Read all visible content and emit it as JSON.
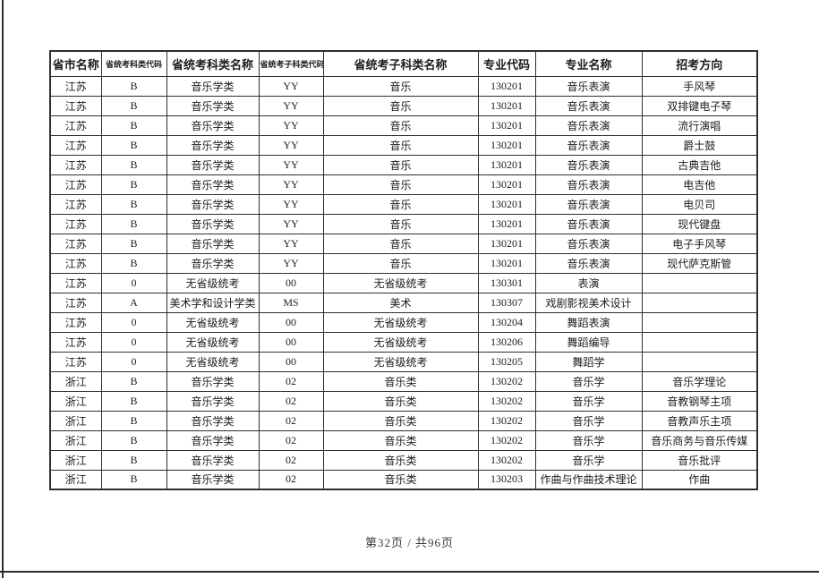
{
  "page": {
    "footer": "第32页 / 共96页"
  },
  "table": {
    "headers": [
      "省市名称",
      "省统考科类代码",
      "省统考科类名称",
      "省统考子科类代码",
      "省统考子科类名称",
      "专业代码",
      "专业名称",
      "招考方向"
    ],
    "rows": [
      [
        "江苏",
        "B",
        "音乐学类",
        "YY",
        "音乐",
        "130201",
        "音乐表演",
        "手风琴"
      ],
      [
        "江苏",
        "B",
        "音乐学类",
        "YY",
        "音乐",
        "130201",
        "音乐表演",
        "双排键电子琴"
      ],
      [
        "江苏",
        "B",
        "音乐学类",
        "YY",
        "音乐",
        "130201",
        "音乐表演",
        "流行演唱"
      ],
      [
        "江苏",
        "B",
        "音乐学类",
        "YY",
        "音乐",
        "130201",
        "音乐表演",
        "爵士鼓"
      ],
      [
        "江苏",
        "B",
        "音乐学类",
        "YY",
        "音乐",
        "130201",
        "音乐表演",
        "古典吉他"
      ],
      [
        "江苏",
        "B",
        "音乐学类",
        "YY",
        "音乐",
        "130201",
        "音乐表演",
        "电吉他"
      ],
      [
        "江苏",
        "B",
        "音乐学类",
        "YY",
        "音乐",
        "130201",
        "音乐表演",
        "电贝司"
      ],
      [
        "江苏",
        "B",
        "音乐学类",
        "YY",
        "音乐",
        "130201",
        "音乐表演",
        "现代键盘"
      ],
      [
        "江苏",
        "B",
        "音乐学类",
        "YY",
        "音乐",
        "130201",
        "音乐表演",
        "电子手风琴"
      ],
      [
        "江苏",
        "B",
        "音乐学类",
        "YY",
        "音乐",
        "130201",
        "音乐表演",
        "现代萨克斯管"
      ],
      [
        "江苏",
        "0",
        "无省级统考",
        "00",
        "无省级统考",
        "130301",
        "表演",
        ""
      ],
      [
        "江苏",
        "A",
        "美术学和设计学类",
        "MS",
        "美术",
        "130307",
        "戏剧影视美术设计",
        ""
      ],
      [
        "江苏",
        "0",
        "无省级统考",
        "00",
        "无省级统考",
        "130204",
        "舞蹈表演",
        ""
      ],
      [
        "江苏",
        "0",
        "无省级统考",
        "00",
        "无省级统考",
        "130206",
        "舞蹈编导",
        ""
      ],
      [
        "江苏",
        "0",
        "无省级统考",
        "00",
        "无省级统考",
        "130205",
        "舞蹈学",
        ""
      ],
      [
        "浙江",
        "B",
        "音乐学类",
        "02",
        "音乐类",
        "130202",
        "音乐学",
        "音乐学理论"
      ],
      [
        "浙江",
        "B",
        "音乐学类",
        "02",
        "音乐类",
        "130202",
        "音乐学",
        "音教钢琴主项"
      ],
      [
        "浙江",
        "B",
        "音乐学类",
        "02",
        "音乐类",
        "130202",
        "音乐学",
        "音教声乐主项"
      ],
      [
        "浙江",
        "B",
        "音乐学类",
        "02",
        "音乐类",
        "130202",
        "音乐学",
        "音乐商务与音乐传媒"
      ],
      [
        "浙江",
        "B",
        "音乐学类",
        "02",
        "音乐类",
        "130202",
        "音乐学",
        "音乐批评"
      ],
      [
        "浙江",
        "B",
        "音乐学类",
        "02",
        "音乐类",
        "130203",
        "作曲与作曲技术理论",
        "作曲"
      ]
    ]
  }
}
